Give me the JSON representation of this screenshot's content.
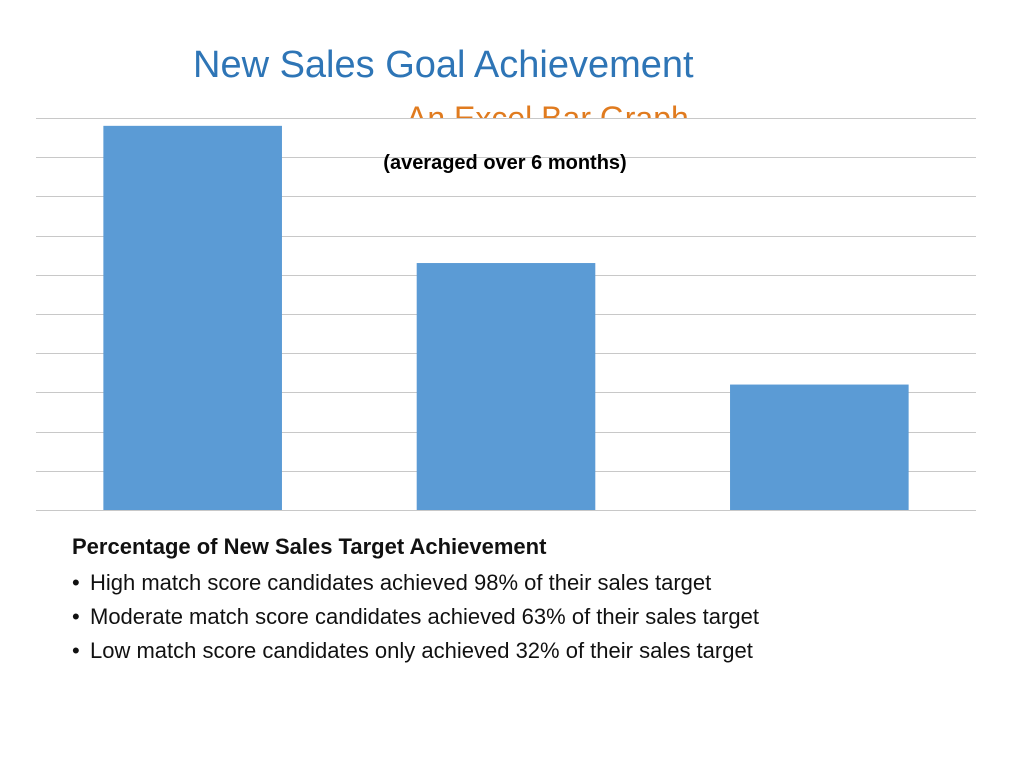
{
  "slide": {
    "title": "New Sales Goal Achievement",
    "subtitle": "An Excel Bar Graph"
  },
  "chart_data": {
    "type": "bar",
    "categories": [
      "",
      "",
      ""
    ],
    "values": [
      98,
      63,
      32
    ],
    "annotation": "(averaged over 6 months)",
    "ylim": [
      0,
      100
    ],
    "grid": true,
    "colors": {
      "bar": "#5B9BD5",
      "grid": "#C8C8C8"
    }
  },
  "notes": {
    "heading": "Percentage of New Sales Target Achievement",
    "bullets": [
      "High match score candidates achieved 98% of their sales target",
      "Moderate match score candidates achieved 63% of their sales target",
      "Low match score candidates only achieved 32% of their sales target"
    ]
  }
}
